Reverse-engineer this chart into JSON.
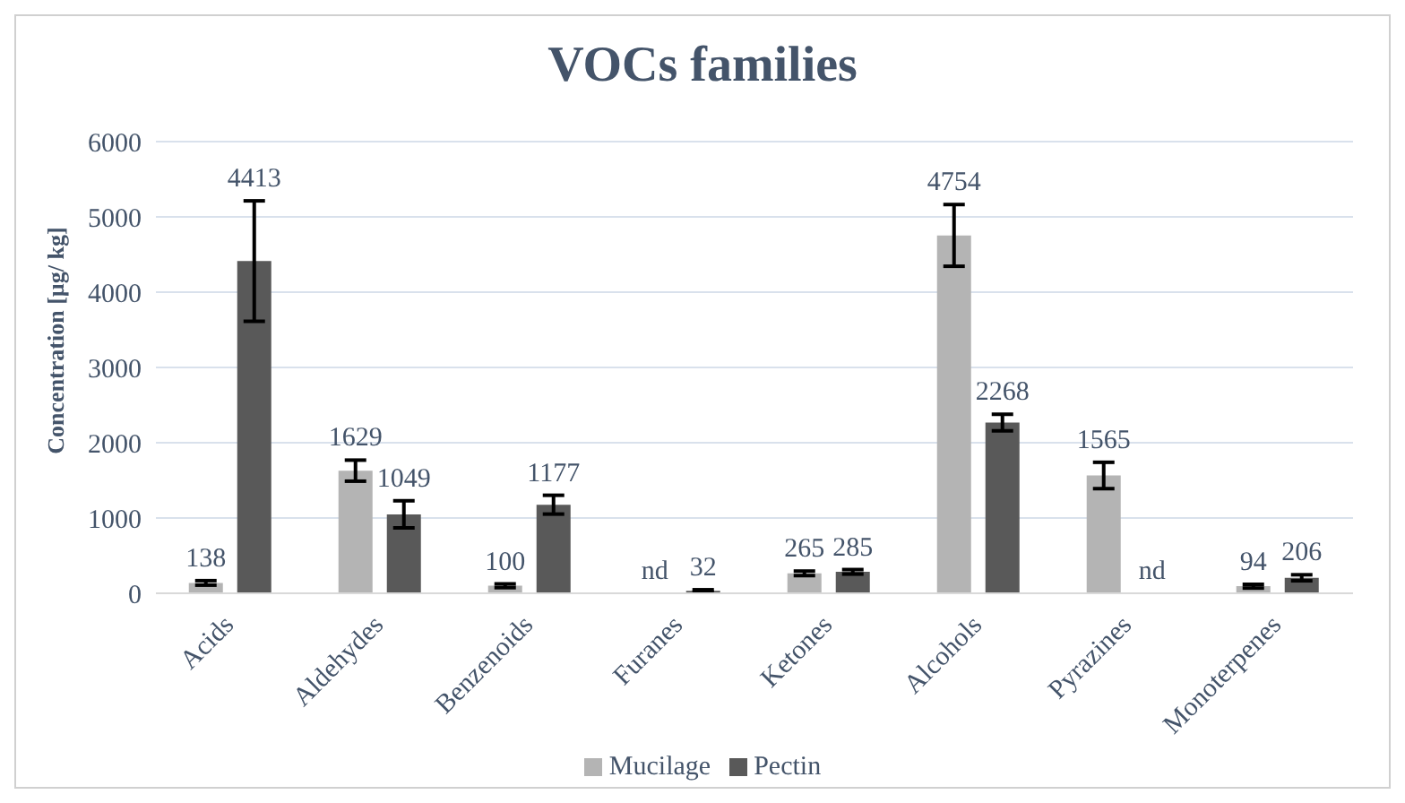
{
  "chart_data": {
    "type": "bar",
    "title": "VOCs families",
    "ylabel": "Concentration [µg/ kg]",
    "categories": [
      "Acids",
      "Aldehydes",
      "Benzenoids",
      "Furanes",
      "Ketones",
      "Alcohols",
      "Pyrazines",
      "Monoterpenes"
    ],
    "series": [
      {
        "name": "Mucilage",
        "color": "#b4b4b4",
        "values": [
          138,
          1629,
          100,
          null,
          265,
          4754,
          1565,
          94
        ],
        "errors": [
          30,
          140,
          25,
          null,
          30,
          410,
          175,
          25
        ],
        "value_labels": [
          "138",
          "1629",
          "100",
          "nd",
          "265",
          "4754",
          "1565",
          "94"
        ]
      },
      {
        "name": "Pectin",
        "color": "#595959",
        "values": [
          4413,
          1049,
          1177,
          32,
          285,
          2268,
          null,
          206
        ],
        "errors": [
          800,
          180,
          125,
          15,
          30,
          110,
          null,
          40
        ],
        "value_labels": [
          "4413",
          "1049",
          "1177",
          "32",
          "285",
          "2268",
          "nd",
          "206"
        ]
      }
    ],
    "ylim": [
      0,
      6000
    ],
    "yticks": [
      0,
      1000,
      2000,
      3000,
      4000,
      5000,
      6000
    ],
    "grid": "y",
    "legend": "bottom"
  }
}
